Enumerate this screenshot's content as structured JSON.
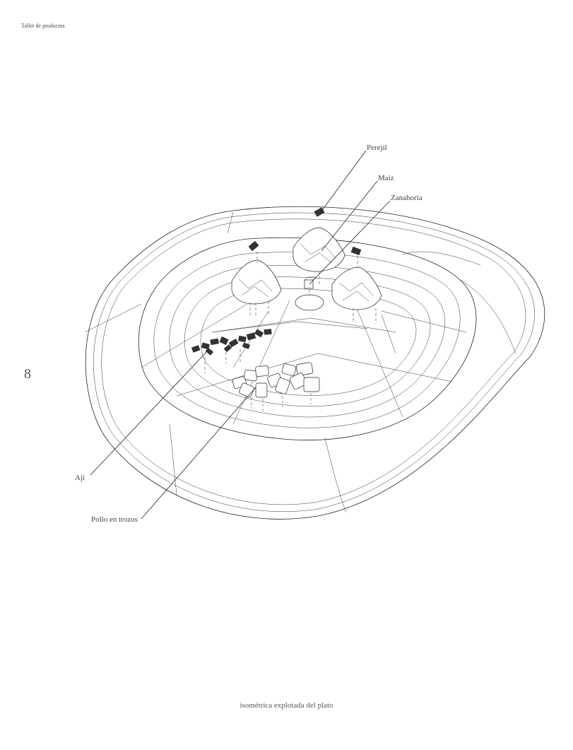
{
  "header": {
    "text": "Taller de productos"
  },
  "page_number": "8",
  "caption": "isométrica explotada del plato",
  "labels": {
    "perejil": "Perejil",
    "maiz": "Maíz",
    "zanahoria": "Zanahoria",
    "aji": "Aji",
    "pollo": "Pollo en trozos"
  }
}
